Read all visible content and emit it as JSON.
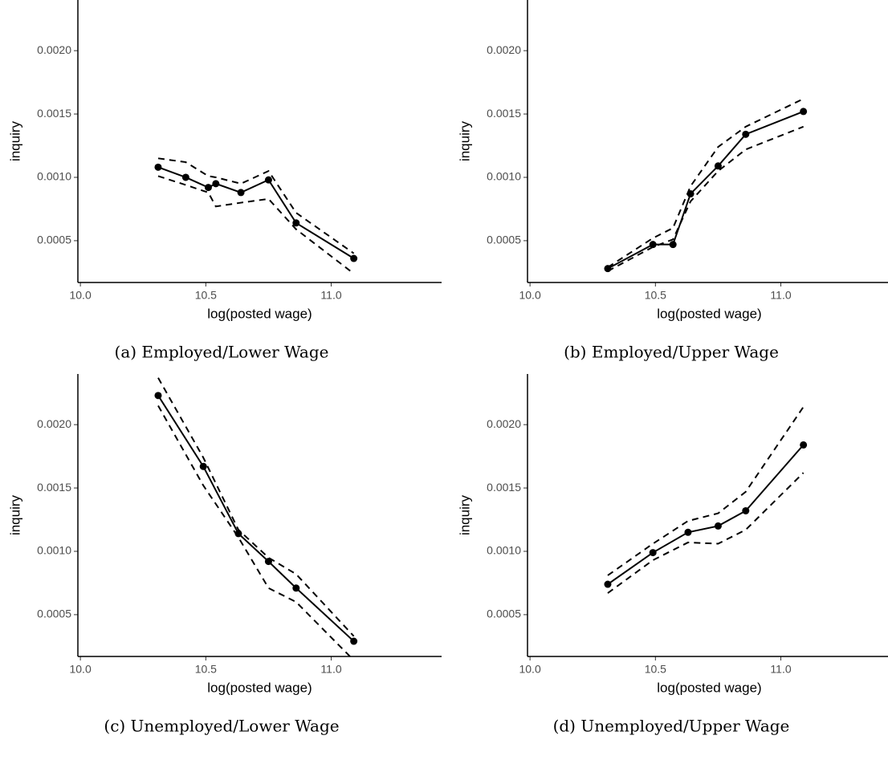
{
  "chart_data": [
    {
      "type": "line",
      "caption": "(a) Employed/Lower Wage",
      "xlabel": "log(posted wage)",
      "ylabel": "inquiry",
      "x": [
        10.31,
        10.42,
        10.51,
        10.54,
        10.64,
        10.75,
        10.86,
        11.09
      ],
      "series": [
        {
          "color": "#000000",
          "linestyle": "solid",
          "markers": true,
          "values": [
            0.00108,
            0.001,
            0.00092,
            0.00095,
            0.00088,
            0.00098,
            0.00064,
            0.00036
          ]
        },
        {
          "color": "#000000",
          "linestyle": "dashed",
          "markers": false,
          "values": [
            0.00115,
            0.00112,
            0.00101,
            0.001,
            0.00095,
            0.00105,
            0.00072,
            0.0004
          ]
        },
        {
          "color": "#000000",
          "linestyle": "dashed",
          "markers": false,
          "values": [
            0.00101,
            0.00094,
            0.00088,
            0.00077,
            0.0008,
            0.00083,
            0.00059,
            0.00024
          ]
        }
      ],
      "xlim": [
        9.99,
        11.44
      ],
      "ylim": [
        0.00017,
        0.0024
      ],
      "xticks": [
        {
          "value": 10,
          "label": "10.0"
        },
        10.5,
        {
          "value": 11,
          "label": "11.0"
        }
      ],
      "yticks": [
        {
          "value": 0.0005,
          "label": "0.0005"
        },
        {
          "value": 0.001,
          "label": "0.0010"
        },
        {
          "value": 0.0015,
          "label": "0.0015"
        },
        {
          "value": 0.002,
          "label": "0.0020"
        }
      ]
    },
    {
      "type": "line",
      "caption": "(b) Employed/Upper Wage",
      "xlabel": "log(posted wage)",
      "ylabel": "inquiry",
      "x": [
        10.31,
        10.49,
        10.57,
        10.64,
        10.75,
        10.86,
        11.09
      ],
      "series": [
        {
          "color": "#000000",
          "linestyle": "solid",
          "markers": true,
          "values": [
            0.00028,
            0.00047,
            0.00047,
            0.00087,
            0.00109,
            0.00134,
            0.00152
          ]
        },
        {
          "color": "#000000",
          "linestyle": "dashed",
          "markers": false,
          "values": [
            0.00029,
            0.00052,
            0.0006,
            0.00093,
            0.00124,
            0.0014,
            0.00162
          ]
        },
        {
          "color": "#000000",
          "linestyle": "dashed",
          "markers": false,
          "values": [
            0.00026,
            0.00045,
            0.00051,
            0.00081,
            0.00105,
            0.00122,
            0.0014
          ]
        }
      ],
      "xlim": [
        9.99,
        11.44
      ],
      "ylim": [
        0.00017,
        0.0024
      ],
      "xticks": [
        {
          "value": 10,
          "label": "10.0"
        },
        10.5,
        {
          "value": 11,
          "label": "11.0"
        }
      ],
      "yticks": [
        {
          "value": 0.0005,
          "label": "0.0005"
        },
        {
          "value": 0.001,
          "label": "0.0010"
        },
        {
          "value": 0.0015,
          "label": "0.0015"
        },
        {
          "value": 0.002,
          "label": "0.0020"
        }
      ]
    },
    {
      "type": "line",
      "caption": "(c) Unemployed/Lower Wage",
      "xlabel": "log(posted wage)",
      "ylabel": "inquiry",
      "x": [
        10.31,
        10.49,
        10.63,
        10.75,
        10.86,
        11.09
      ],
      "series": [
        {
          "color": "#000000",
          "linestyle": "solid",
          "markers": true,
          "values": [
            0.00223,
            0.00167,
            0.00114,
            0.00092,
            0.00071,
            0.00029
          ]
        },
        {
          "color": "#000000",
          "linestyle": "dashed",
          "markers": false,
          "values": [
            0.00237,
            0.00174,
            0.00117,
            0.00095,
            0.00082,
            0.00033
          ]
        },
        {
          "color": "#000000",
          "linestyle": "dashed",
          "markers": false,
          "values": [
            0.00215,
            0.00152,
            0.00111,
            0.00071,
            0.0006,
            0.00014
          ]
        }
      ],
      "xlim": [
        9.99,
        11.44
      ],
      "ylim": [
        0.00017,
        0.0024
      ],
      "xticks": [
        {
          "value": 10,
          "label": "10.0"
        },
        10.5,
        {
          "value": 11,
          "label": "11.0"
        }
      ],
      "yticks": [
        {
          "value": 0.0005,
          "label": "0.0005"
        },
        {
          "value": 0.001,
          "label": "0.0010"
        },
        {
          "value": 0.0015,
          "label": "0.0015"
        },
        {
          "value": 0.002,
          "label": "0.0020"
        }
      ]
    },
    {
      "type": "line",
      "caption": "(d) Unemployed/Upper Wage",
      "xlabel": "log(posted wage)",
      "ylabel": "inquiry",
      "x": [
        10.31,
        10.49,
        10.63,
        10.75,
        10.86,
        11.09
      ],
      "series": [
        {
          "color": "#000000",
          "linestyle": "solid",
          "markers": true,
          "values": [
            0.00074,
            0.00099,
            0.00115,
            0.0012,
            0.00132,
            0.00184
          ]
        },
        {
          "color": "#000000",
          "linestyle": "dashed",
          "markers": false,
          "values": [
            0.00081,
            0.00106,
            0.00124,
            0.0013,
            0.00147,
            0.00214
          ]
        },
        {
          "color": "#000000",
          "linestyle": "dashed",
          "markers": false,
          "values": [
            0.00067,
            0.00093,
            0.00107,
            0.00106,
            0.00117,
            0.00162
          ]
        }
      ],
      "xlim": [
        9.99,
        11.44
      ],
      "ylim": [
        0.00017,
        0.0024
      ],
      "xticks": [
        {
          "value": 10,
          "label": "10.0"
        },
        10.5,
        {
          "value": 11,
          "label": "11.0"
        }
      ],
      "yticks": [
        {
          "value": 0.0005,
          "label": "0.0005"
        },
        {
          "value": 0.001,
          "label": "0.0010"
        },
        {
          "value": 0.0015,
          "label": "0.0015"
        },
        {
          "value": 0.002,
          "label": "0.0020"
        }
      ]
    }
  ]
}
